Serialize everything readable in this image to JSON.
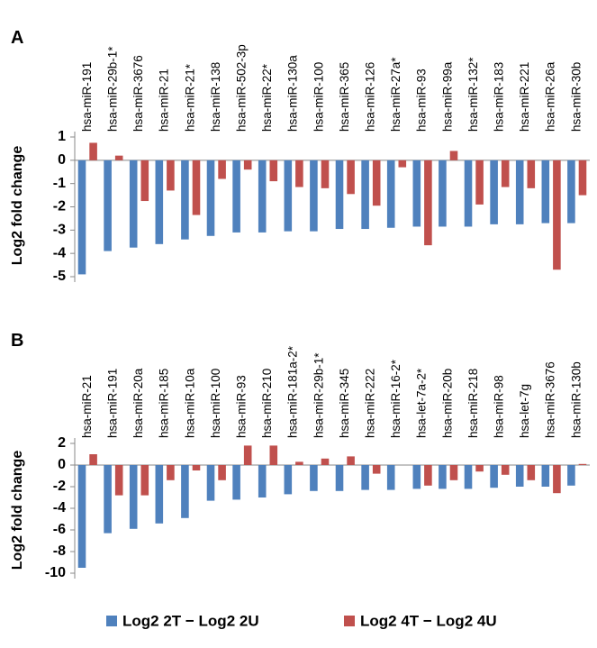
{
  "chart_data": [
    {
      "type": "bar",
      "label": "A",
      "y_label": "Log2 fold change",
      "categories": [
        "hsa-miR-191",
        "hsa-miR-29b-1*",
        "hsa-miR-3676",
        "hsa-miR-21",
        "hsa-miR-21*",
        "hsa-miR-138",
        "hsa-miR-502-3p",
        "hsa-miR-22*",
        "hsa-miR-130a",
        "hsa-miR-100",
        "hsa-miR-365",
        "hsa-miR-126",
        "hsa-miR-27a*",
        "hsa-miR-93",
        "hsa-miR-99a",
        "hsa-miR-132*",
        "hsa-miR-183",
        "hsa-miR-221",
        "hsa-miR-26a",
        "hsa-miR-30b"
      ],
      "series": [
        {
          "name": "Log2 2T − Log2 2U",
          "color": "#4f81bd",
          "values": [
            -4.9,
            -3.9,
            -3.75,
            -3.6,
            -3.4,
            -3.25,
            -3.1,
            -3.1,
            -3.05,
            -3.05,
            -2.95,
            -2.95,
            -2.9,
            -2.85,
            -2.85,
            -2.85,
            -2.75,
            -2.75,
            -2.7,
            -2.7
          ]
        },
        {
          "name": "Log2 4T − Log2 4U",
          "color": "#c0504d",
          "values": [
            0.75,
            0.2,
            -1.75,
            -1.3,
            -2.35,
            -0.8,
            -0.4,
            -0.9,
            -1.15,
            -1.2,
            -1.45,
            -1.95,
            -0.3,
            -3.65,
            0.4,
            -1.9,
            -1.15,
            -1.2,
            -4.7,
            -1.5
          ]
        }
      ],
      "ylim": [
        -5,
        1
      ],
      "yticks": [
        -5,
        -4,
        -3,
        -2,
        -1,
        0,
        1
      ]
    },
    {
      "type": "bar",
      "label": "B",
      "categories": [
        "hsa-miR-21",
        "hsa-miR-191",
        "hsa-miR-20a",
        "hsa-miR-185",
        "hsa-miR-10a",
        "hsa-miR-100",
        "hsa-miR-93",
        "hsa-miR-210",
        "hsa-miR-181a-2*",
        "hsa-miR-29b-1*",
        "hsa-miR-345",
        "hsa-miR-222",
        "hsa-miR-16-2*",
        "hsa-let-7a-2*",
        "hsa-miR-20b",
        "hsa-miR-218",
        "hsa-miR-98",
        "hsa-let-7g",
        "hsa-miR-3676",
        "hsa-miR-130b"
      ],
      "series": [
        {
          "color": "#4f81bd",
          "values": [
            -9.5,
            -6.3,
            -5.9,
            -5.4,
            -4.9,
            -3.3,
            -3.2,
            -3.0,
            -2.7,
            -2.4,
            -2.4,
            -2.3,
            -2.3,
            -2.2,
            -2.2,
            -2.2,
            -2.1,
            -2.0,
            -2.0,
            -1.9
          ]
        },
        {
          "color": "#c0504d",
          "values": [
            1.0,
            -2.8,
            -2.8,
            -1.4,
            -0.5,
            -1.4,
            1.8,
            1.8,
            0.3,
            0.6,
            0.8,
            -0.8,
            0,
            -1.9,
            -1.4,
            -0.6,
            -0.9,
            -1.4,
            -2.6,
            0.1
          ]
        }
      ],
      "ylim": [
        -10,
        2
      ],
      "yticks": [
        -10,
        -8,
        -6,
        -4,
        -2,
        0,
        2
      ]
    }
  ]
}
